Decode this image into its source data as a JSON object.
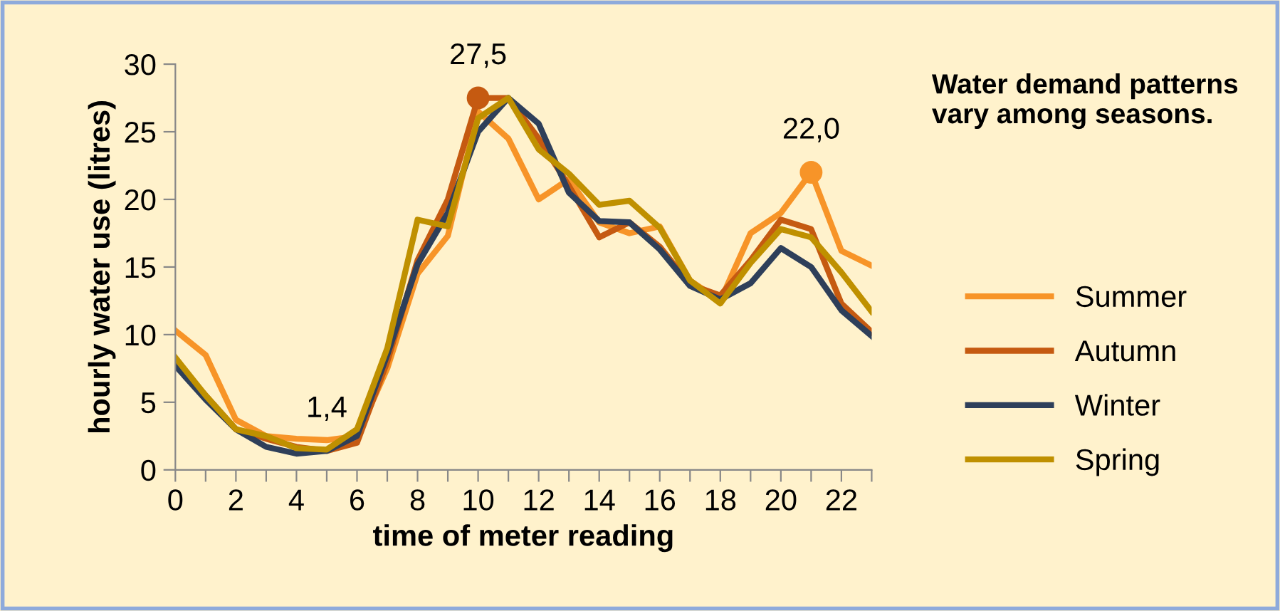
{
  "chart_data": {
    "type": "line",
    "xlabel": "time of meter reading",
    "ylabel": "hourly water use (litres)",
    "x": [
      0,
      1,
      2,
      3,
      4,
      5,
      6,
      7,
      8,
      9,
      10,
      11,
      12,
      13,
      14,
      15,
      16,
      17,
      18,
      19,
      20,
      21,
      22,
      23
    ],
    "xlim": [
      0,
      23
    ],
    "xticks": [
      0,
      {
        "value": 1,
        "label": null
      },
      2,
      {
        "value": 3,
        "label": null
      },
      4,
      {
        "value": 5,
        "label": null
      },
      6,
      {
        "value": 7,
        "label": null
      },
      8,
      {
        "value": 9,
        "label": null
      },
      10,
      {
        "value": 11,
        "label": null
      },
      12,
      {
        "value": 13,
        "label": null
      },
      14,
      {
        "value": 15,
        "label": null
      },
      16,
      {
        "value": 17,
        "label": null
      },
      18,
      {
        "value": 19,
        "label": null
      },
      20,
      {
        "value": 21,
        "label": null
      },
      22,
      {
        "value": 23,
        "label": null
      }
    ],
    "ylim": [
      0,
      30
    ],
    "yticks": [
      0,
      5,
      10,
      15,
      20,
      25,
      30
    ],
    "grid": false,
    "legend": "right",
    "marker": "none",
    "line_style": "solid",
    "series": [
      {
        "name": "Summer",
        "color": "#f79428",
        "values": [
          10.3,
          8.5,
          3.7,
          2.5,
          2.3,
          2.2,
          2.5,
          7.5,
          14.5,
          17.3,
          26.5,
          24.5,
          20,
          21.5,
          18.3,
          17.5,
          18,
          14,
          12.5,
          17.5,
          19,
          22,
          16.2,
          15.1
        ]
      },
      {
        "name": "Autumn",
        "color": "#c55a11",
        "values": [
          8,
          5.5,
          3,
          2.3,
          1.7,
          1.4,
          2,
          8,
          15.5,
          20,
          27.5,
          27.5,
          24.5,
          21,
          17.2,
          18.3,
          16.5,
          13.7,
          12.9,
          15.5,
          18.5,
          17.8,
          12.3,
          10.2
        ]
      },
      {
        "name": "Winter",
        "color": "#2e3f5a",
        "values": [
          7.7,
          5.2,
          3,
          1.7,
          1.2,
          1.4,
          2.5,
          8.5,
          15.2,
          19,
          25,
          27.5,
          25.6,
          20.5,
          18.4,
          18.3,
          16.3,
          13.6,
          12.6,
          13.8,
          16.4,
          15,
          11.8,
          9.9
        ]
      },
      {
        "name": "Spring",
        "color": "#bf9000",
        "values": [
          8.3,
          5.5,
          3,
          2.5,
          1.6,
          1.5,
          3,
          9,
          18.5,
          18,
          26,
          27.5,
          23.7,
          21.9,
          19.6,
          19.9,
          17.9,
          14,
          12.3,
          15.3,
          17.8,
          17.2,
          14.6,
          11.7
        ]
      },
      {
        "type": "scatter",
        "marker": "circle",
        "color": "#c55a11",
        "x": [
          10
        ],
        "values": [
          27.5
        ]
      },
      {
        "type": "scatter",
        "marker": "circle",
        "color": "#f79428",
        "x": [
          21
        ],
        "values": [
          22.0
        ]
      }
    ],
    "annotations": [
      {
        "text": "27,5",
        "x": 10,
        "y": 27.5
      },
      {
        "text": "22,0",
        "x": 21,
        "y": 22.0
      },
      {
        "text": "1,4",
        "x": 5,
        "y": 1.4
      },
      "Water demand patterns  vary among seasons."
    ]
  }
}
